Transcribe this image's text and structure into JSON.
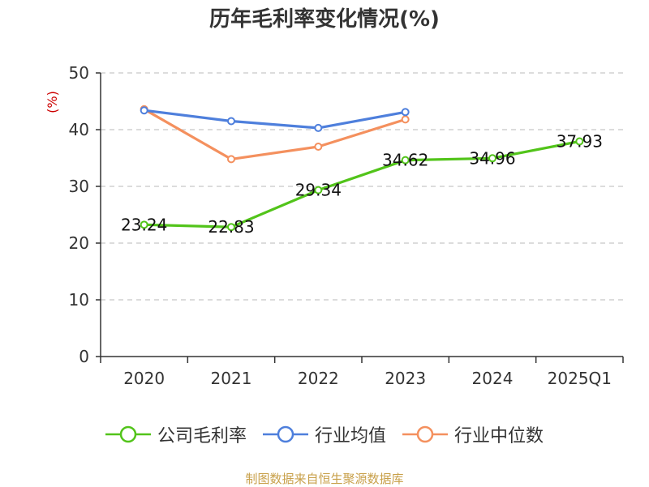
{
  "title": "历年毛利率变化情况(%)",
  "source_note": "制图数据来自恒生聚源数据库",
  "chart_data": {
    "type": "line",
    "title": "历年毛利率变化情况(%)",
    "ylabel": "(%)",
    "categories": [
      "2020",
      "2021",
      "2022",
      "2023",
      "2024",
      "2025Q1"
    ],
    "ylim": [
      0,
      50
    ],
    "yticks": [
      0,
      10,
      20,
      30,
      40,
      50
    ],
    "grid": true,
    "legend_position": "bottom",
    "series": [
      {
        "name": "公司毛利率",
        "color": "#52c41a",
        "values": [
          23.24,
          22.83,
          29.34,
          34.62,
          34.96,
          37.93
        ],
        "labels": [
          "23.24",
          "22.83",
          "29.34",
          "34.62",
          "34.96",
          "37.93"
        ]
      },
      {
        "name": "行业均值",
        "color": "#4e7fdc",
        "values": [
          43.4,
          41.5,
          40.3,
          43.1,
          null,
          null
        ]
      },
      {
        "name": "行业中位数",
        "color": "#f4905e",
        "values": [
          43.6,
          34.8,
          37.0,
          41.8,
          null,
          null
        ]
      }
    ]
  }
}
